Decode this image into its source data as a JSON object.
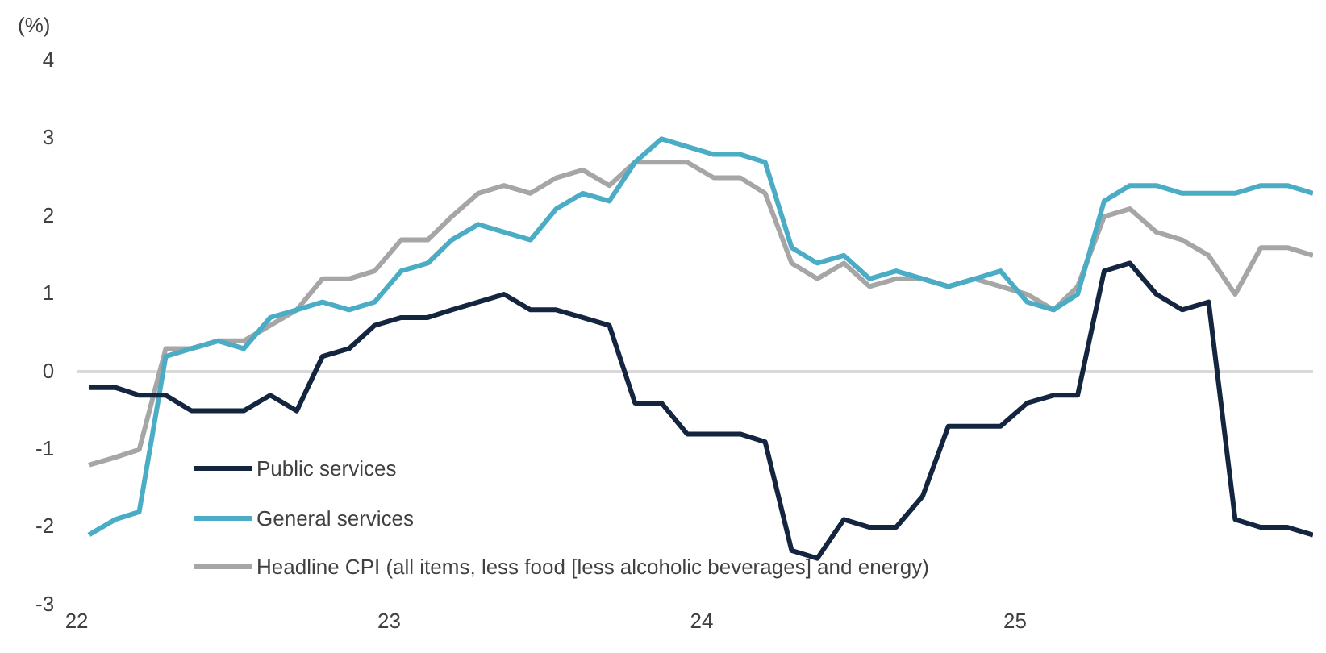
{
  "chart_data": {
    "type": "line",
    "ylabel": "(%)",
    "x": [
      "2022-01-15",
      "2022-02-15",
      "2022-03-15",
      "2022-04-15",
      "2022-05-15",
      "2022-06-15",
      "2022-07-15",
      "2022-08-15",
      "2022-09-15",
      "2022-10-15",
      "2022-11-15",
      "2022-12-15",
      "2023-01-15",
      "2023-02-15",
      "2023-03-15",
      "2023-04-15",
      "2023-05-15",
      "2023-06-15",
      "2023-07-15",
      "2023-08-15",
      "2023-09-15",
      "2023-10-15",
      "2023-11-15",
      "2023-12-15",
      "2024-01-15",
      "2024-02-15",
      "2024-03-15",
      "2024-04-15",
      "2024-05-15",
      "2024-06-15",
      "2024-07-15",
      "2024-08-15",
      "2024-09-15",
      "2024-10-15",
      "2024-11-15",
      "2024-12-15",
      "2025-01-15",
      "2025-02-15",
      "2025-03-15",
      "2025-04-15",
      "2025-05-15",
      "2025-06-15",
      "2025-07-15",
      "2025-08-15",
      "2025-09-15",
      "2025-10-15",
      "2025-11-15",
      "2025-12-15"
    ],
    "xlim": [
      "2022-01-01",
      "2025-12-15"
    ],
    "xticks": [
      {
        "value": "2022",
        "label": "22"
      },
      {
        "value": "2023",
        "label": "23"
      },
      {
        "value": "2024",
        "label": "24"
      },
      {
        "value": "2025",
        "label": "25"
      }
    ],
    "ylim": [
      -3,
      4
    ],
    "yticks": [
      -3,
      -2,
      -1,
      0,
      1,
      2,
      3,
      4
    ],
    "series": [
      {
        "name": "Public services",
        "color": "#14253f",
        "values": [
          -0.2,
          -0.2,
          -0.3,
          -0.3,
          -0.5,
          -0.5,
          -0.5,
          -0.3,
          -0.5,
          0.2,
          0.3,
          0.6,
          0.7,
          0.7,
          0.8,
          0.9,
          1.0,
          0.8,
          0.8,
          0.7,
          0.6,
          -0.4,
          -0.4,
          -0.8,
          -0.8,
          -0.8,
          -0.9,
          -2.3,
          -2.4,
          -1.9,
          -2.0,
          -2.0,
          -1.6,
          -0.7,
          -0.7,
          -0.7,
          -0.4,
          -0.3,
          -0.3,
          1.3,
          1.4,
          1.0,
          0.8,
          0.9,
          -1.9,
          -2.0,
          -2.0,
          -2.1
        ]
      },
      {
        "name": "General services",
        "color": "#4bacc6",
        "values": [
          -2.1,
          -1.9,
          -1.8,
          0.2,
          0.3,
          0.4,
          0.3,
          0.7,
          0.8,
          0.9,
          0.8,
          0.9,
          1.3,
          1.4,
          1.7,
          1.9,
          1.8,
          1.7,
          2.1,
          2.3,
          2.2,
          2.7,
          3.0,
          2.9,
          2.8,
          2.8,
          2.7,
          1.6,
          1.4,
          1.5,
          1.2,
          1.3,
          1.2,
          1.1,
          1.2,
          1.3,
          0.9,
          0.8,
          1.0,
          2.2,
          2.4,
          2.4,
          2.3,
          2.3,
          2.3,
          2.4,
          2.4,
          2.3
        ]
      },
      {
        "name": "Headline CPI (all items, less food [less alcoholic beverages] and energy)",
        "color": "#a6a6a6",
        "values": [
          -1.2,
          -1.1,
          -1.0,
          0.3,
          0.3,
          0.4,
          0.4,
          0.6,
          0.8,
          1.2,
          1.2,
          1.3,
          1.7,
          1.7,
          2.0,
          2.3,
          2.4,
          2.3,
          2.5,
          2.6,
          2.4,
          2.7,
          2.7,
          2.7,
          2.5,
          2.5,
          2.3,
          1.4,
          1.2,
          1.4,
          1.1,
          1.2,
          1.2,
          1.1,
          1.2,
          1.1,
          1.0,
          0.8,
          1.1,
          2.0,
          2.1,
          1.8,
          1.7,
          1.5,
          1.0,
          1.6,
          1.6,
          1.5
        ]
      }
    ],
    "legend": "bottom left",
    "marker": "none",
    "line_style": "solid"
  }
}
